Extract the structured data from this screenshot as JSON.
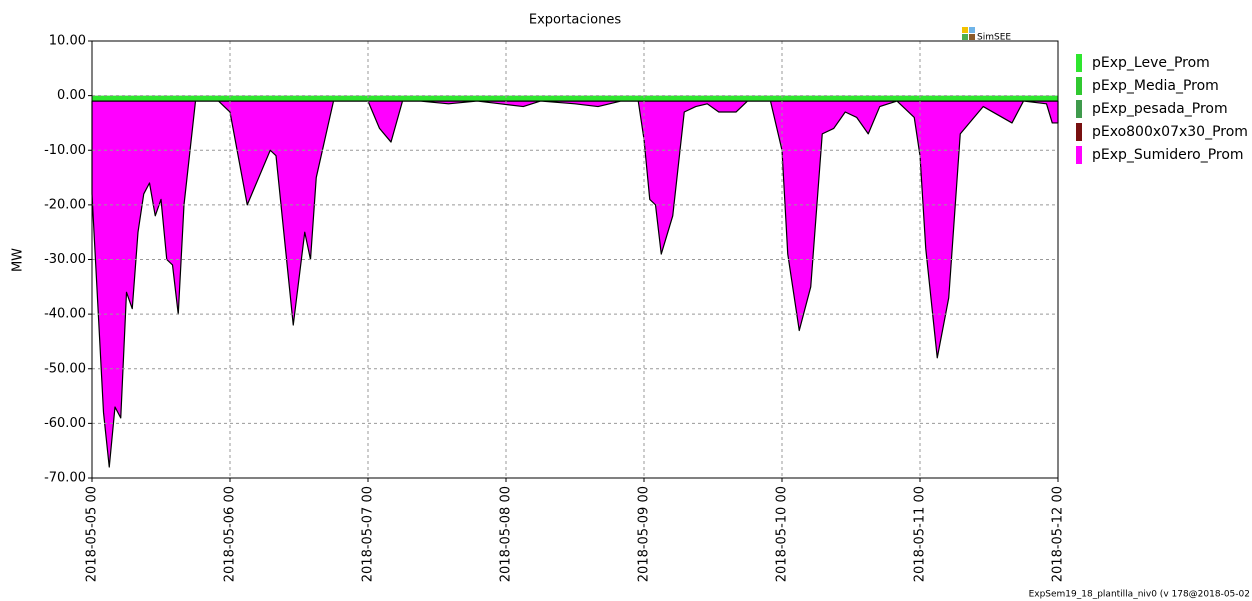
{
  "chart_data": {
    "type": "stacked_area",
    "title": "Exportaciones",
    "y_label": "MW",
    "logo": "SimSEE",
    "annotation": "ExpSem19_18_plantilla_niv0 (v 178@2018-05-02",
    "xlim": [
      0,
      168
    ],
    "ylim": [
      -70,
      10
    ],
    "grid": true,
    "legend": "right",
    "xticks": [
      {
        "value": 0,
        "label": "2018-05-05 00"
      },
      {
        "value": 24,
        "label": "2018-05-06 00"
      },
      {
        "value": 48,
        "label": "2018-05-07 00"
      },
      {
        "value": 72,
        "label": "2018-05-08 00"
      },
      {
        "value": 96,
        "label": "2018-05-09 00"
      },
      {
        "value": 120,
        "label": "2018-05-10 00"
      },
      {
        "value": 144,
        "label": "2018-05-11 00"
      },
      {
        "value": 168,
        "label": "2018-05-12 00"
      }
    ],
    "yticks": [
      {
        "value": 10,
        "label": "10.00"
      },
      {
        "value": 0,
        "label": "0.00"
      },
      {
        "value": -10,
        "label": "-10.00"
      },
      {
        "value": -20,
        "label": "-20.00"
      },
      {
        "value": -30,
        "label": "-30.00"
      },
      {
        "value": -40,
        "label": "-40.00"
      },
      {
        "value": -50,
        "label": "-50.00"
      },
      {
        "value": -60,
        "label": "-60.00"
      },
      {
        "value": -70,
        "label": "-70.00"
      }
    ],
    "x": [
      0,
      1,
      2,
      3,
      4,
      5,
      6,
      7,
      8,
      9,
      10,
      11,
      12,
      13,
      14,
      15,
      16,
      18,
      22,
      24,
      27,
      29,
      31,
      32,
      35,
      37,
      38,
      39,
      42,
      48,
      50,
      52,
      54,
      57,
      62,
      67,
      71,
      75,
      78,
      84,
      88,
      92,
      95,
      96,
      97,
      98,
      99,
      101,
      103,
      105,
      107,
      109,
      112,
      114,
      118,
      120,
      121,
      123,
      125,
      127,
      129,
      131,
      133,
      135,
      137,
      140,
      143,
      144,
      145,
      147,
      149,
      151,
      155,
      160,
      162,
      166,
      167,
      168
    ],
    "series": [
      {
        "name": "pExp_Leve_Prom",
        "color": "#2ee62e",
        "values": [
          -1,
          -1,
          -1,
          -1,
          -1,
          -1,
          -1,
          -1,
          -1,
          -1,
          -1,
          -1,
          -1,
          -1,
          -1,
          -1,
          -1,
          -1,
          -1,
          -1,
          -1,
          -1,
          -1,
          -1,
          -1,
          -1,
          -1,
          -1,
          -1,
          -1,
          -1,
          -1,
          -1,
          -1,
          -1,
          -1,
          -1,
          -1,
          -1,
          -1,
          -1,
          -1,
          -1,
          -1,
          -1,
          -1,
          -1,
          -1,
          -1,
          -1,
          -1,
          -1,
          -1,
          -1,
          -1,
          -1,
          -1,
          -1,
          -1,
          -1,
          -1,
          -1,
          -1,
          -1,
          -1,
          -1,
          -1,
          -1,
          -1,
          -1,
          -1,
          -1,
          -1,
          -1,
          -1,
          -1,
          -1,
          -1
        ]
      },
      {
        "name": "pExp_Media_Prom",
        "color": "#30c830",
        "values": [
          0,
          0,
          0,
          0,
          0,
          0,
          0,
          0,
          0,
          0,
          0,
          0,
          0,
          0,
          0,
          0,
          0,
          0,
          0,
          0,
          0,
          0,
          0,
          0,
          0,
          0,
          0,
          0,
          0,
          0,
          0,
          0,
          0,
          0,
          0,
          0,
          0,
          0,
          0,
          0,
          0,
          0,
          0,
          0,
          0,
          0,
          0,
          0,
          0,
          0,
          0,
          0,
          0,
          0,
          0,
          0,
          0,
          0,
          0,
          0,
          0,
          0,
          0,
          0,
          0,
          0,
          0,
          0,
          0,
          0,
          0,
          0,
          0,
          0,
          0,
          0,
          0,
          0
        ]
      },
      {
        "name": "pExp_pesada_Prom",
        "color": "#3f9a4c",
        "values": [
          0,
          0,
          0,
          0,
          0,
          0,
          0,
          0,
          0,
          0,
          0,
          0,
          0,
          0,
          0,
          0,
          0,
          0,
          0,
          0,
          0,
          0,
          0,
          0,
          0,
          0,
          0,
          0,
          0,
          0,
          0,
          0,
          0,
          0,
          0,
          0,
          0,
          0,
          0,
          0,
          0,
          0,
          0,
          0,
          0,
          0,
          0,
          0,
          0,
          0,
          0,
          0,
          0,
          0,
          0,
          0,
          0,
          0,
          0,
          0,
          0,
          0,
          0,
          0,
          0,
          0,
          0,
          0,
          0,
          0,
          0,
          0,
          0,
          0,
          0,
          0,
          0,
          0
        ]
      },
      {
        "name": "pExo800x07x30_Prom",
        "color": "#781010",
        "values": [
          0,
          0,
          0,
          0,
          0,
          0,
          0,
          0,
          0,
          0,
          0,
          0,
          0,
          0,
          0,
          0,
          0,
          0,
          0,
          0,
          0,
          0,
          0,
          0,
          0,
          0,
          0,
          0,
          0,
          0,
          0,
          0,
          0,
          0,
          0,
          0,
          0,
          0,
          0,
          0,
          0,
          0,
          0,
          0,
          0,
          0,
          0,
          0,
          0,
          0,
          0,
          0,
          0,
          0,
          0,
          0,
          0,
          0,
          0,
          0,
          0,
          0,
          0,
          0,
          0,
          0,
          0,
          0,
          0,
          0,
          0,
          0,
          0,
          0,
          0,
          0,
          0,
          0
        ]
      },
      {
        "name": "pExp_Sumidero_Prom",
        "color": "#ff00ff",
        "values": [
          -17,
          -37,
          -57,
          -67,
          -56,
          -58,
          -35,
          -38,
          -24,
          -17,
          -15,
          -21,
          -18,
          -29,
          -30,
          -39,
          -19,
          0,
          0,
          -2,
          -19,
          -14,
          -9,
          -10,
          -41,
          -24,
          -29,
          -14,
          0,
          0,
          -5,
          -7.5,
          0,
          0,
          -0.5,
          0,
          -0.5,
          -1,
          0,
          -0.5,
          -1,
          0,
          0,
          -7,
          -18,
          -19,
          -28,
          -21,
          -2,
          -1,
          -0.5,
          -2,
          -2,
          0,
          0,
          -9,
          -28,
          -42,
          -34,
          -6,
          -5,
          -2,
          -3,
          -6,
          -1,
          0,
          -3,
          -10,
          -27,
          -47,
          -36,
          -6,
          -1,
          -4,
          0,
          -0.5,
          -4,
          -4
        ]
      }
    ]
  }
}
